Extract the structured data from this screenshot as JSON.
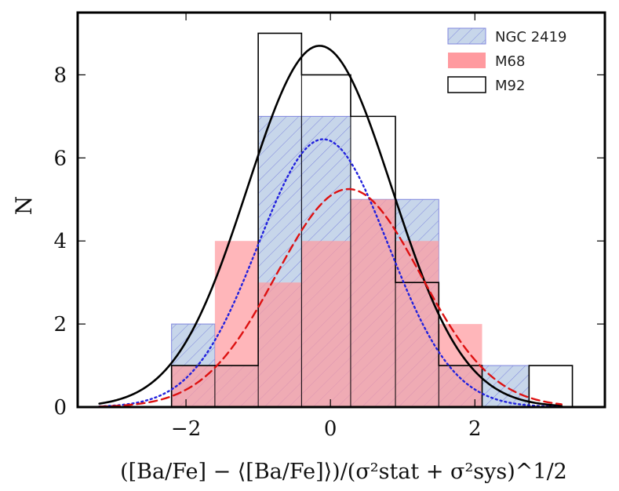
{
  "chart_data": {
    "type": "bar",
    "subtype": "histogram",
    "title": "",
    "xlabel": "([Ba/Fe] − ⟨[Ba/Fe]⟩)/(σ²stat + σ²sys)^1/2",
    "ylabel": "N",
    "xlim": [
      -3.5,
      3.8
    ],
    "ylim": [
      0,
      9.5
    ],
    "xticks": [
      -2,
      0,
      2
    ],
    "xtick_labels": [
      "−2",
      "0",
      "2"
    ],
    "yticks": [
      0,
      2,
      4,
      6,
      8
    ],
    "ytick_labels": [
      "0",
      "2",
      "4",
      "6",
      "8"
    ],
    "grid": false,
    "legend_position": "top-right",
    "series": [
      {
        "name": "NGC 2419",
        "style": "hatched",
        "fill": "#c7d6ea",
        "edge": "#7f86dd",
        "bins": [
          {
            "x0": -2.2,
            "x1": -1.6,
            "count": 2
          },
          {
            "x0": -1.6,
            "x1": -1.0,
            "count": 1
          },
          {
            "x0": -1.0,
            "x1": -0.4,
            "count": 7
          },
          {
            "x0": -0.4,
            "x1": 0.28,
            "count": 7
          },
          {
            "x0": 0.28,
            "x1": 0.9,
            "count": 5
          },
          {
            "x0": 0.9,
            "x1": 1.5,
            "count": 5
          },
          {
            "x0": 1.5,
            "x1": 2.1,
            "count": 1
          },
          {
            "x0": 2.1,
            "x1": 2.75,
            "count": 1
          }
        ]
      },
      {
        "name": "M68",
        "style": "filled",
        "fill": "#ff9a9f",
        "edge": "#ff9a9f",
        "bins": [
          {
            "x0": -2.2,
            "x1": -1.6,
            "count": 1
          },
          {
            "x0": -1.6,
            "x1": -1.0,
            "count": 4
          },
          {
            "x0": -1.0,
            "x1": -0.4,
            "count": 3
          },
          {
            "x0": -0.4,
            "x1": 0.28,
            "count": 4
          },
          {
            "x0": 0.28,
            "x1": 0.9,
            "count": 5
          },
          {
            "x0": 0.9,
            "x1": 1.5,
            "count": 4
          },
          {
            "x0": 1.5,
            "x1": 2.1,
            "count": 2
          }
        ]
      },
      {
        "name": "M92",
        "style": "outline",
        "fill": "none",
        "edge": "#000000",
        "bins": [
          {
            "x0": -2.2,
            "x1": -1.6,
            "count": 1
          },
          {
            "x0": -1.6,
            "x1": -1.0,
            "count": 1
          },
          {
            "x0": -1.0,
            "x1": -0.4,
            "count": 9
          },
          {
            "x0": -0.4,
            "x1": 0.28,
            "count": 8
          },
          {
            "x0": 0.28,
            "x1": 0.9,
            "count": 7
          },
          {
            "x0": 0.9,
            "x1": 1.5,
            "count": 3
          },
          {
            "x0": 1.5,
            "x1": 2.1,
            "count": 1
          },
          {
            "x0": 2.1,
            "x1": 2.75,
            "count": 0
          },
          {
            "x0": 2.75,
            "x1": 3.35,
            "count": 1
          }
        ]
      }
    ],
    "curves": [
      {
        "name": "M92 gaussian",
        "color": "#000000",
        "style": "solid",
        "mu": -0.15,
        "sigma": 1.0,
        "amplitude": 8.7,
        "x_range": [
          -3.2,
          3.2
        ]
      },
      {
        "name": "NGC 2419 gaussian",
        "color": "#2222dd",
        "style": "dotted",
        "mu": -0.1,
        "sigma": 0.9,
        "amplitude": 6.45,
        "x_range": [
          -3.2,
          3.2
        ]
      },
      {
        "name": "M68 gaussian",
        "color": "#dd1111",
        "style": "dashed",
        "mu": 0.25,
        "sigma": 1.0,
        "amplitude": 5.25,
        "x_range": [
          -3.2,
          3.2
        ]
      }
    ]
  }
}
